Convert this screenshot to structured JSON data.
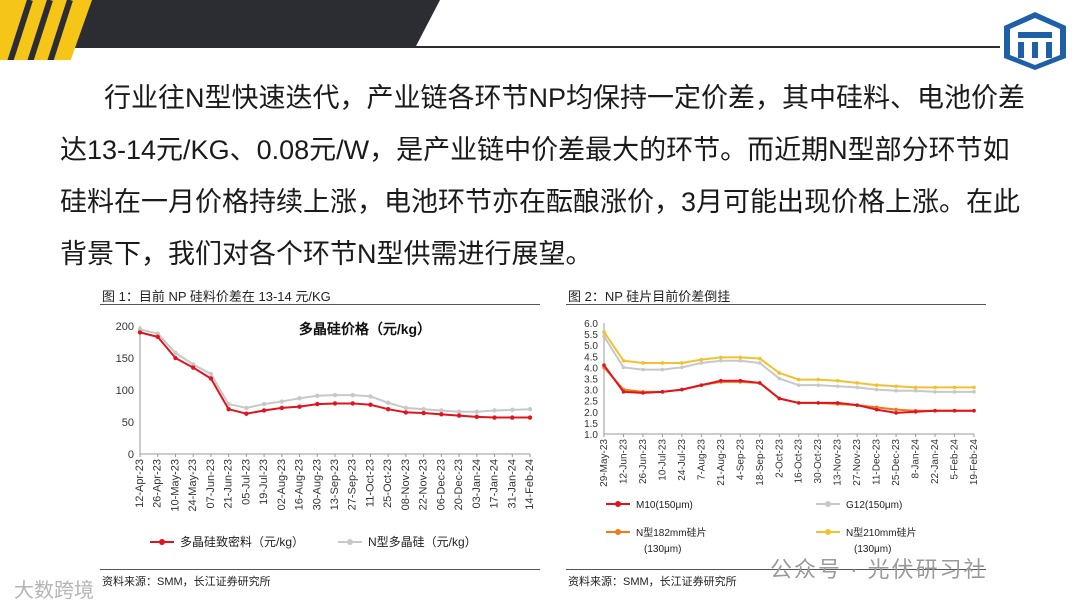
{
  "paragraph": {
    "line1": "行业往N型快速迭代，产业链各环节NP均保持一定价差，其中硅料、电池价差",
    "line2": "达13-14元/KG、0.08元/W，是产业链中价差最大的环节。而近期N型部分环节如",
    "line3": "硅料在一月价格持续上涨，电池环节亦在酝酿涨价，3月可能出现价格上涨。在此",
    "line4": "背景下，我们对各个环节N型供需进行展望。"
  },
  "figure1": {
    "caption": "图 1：目前 NP 硅料价差在 13-14 元/KG",
    "source": "资料来源：SMM，长江证券研究所"
  },
  "figure2": {
    "caption": "图 2：NP 硅片目前价差倒挂",
    "source": "资料来源：SMM，长江证券研究所"
  },
  "watermark": {
    "left": "大数跨境",
    "right": "公众号 · 光伏研习社"
  },
  "colors": {
    "banner_yellow": "#f5c518",
    "banner_dark": "#2b2d33",
    "red": "#e0141e",
    "gray": "#c8c8c8",
    "orange": "#f07a1a",
    "gold": "#f2c12e"
  },
  "chart_data": [
    {
      "type": "line",
      "title": "多晶硅价格（元/kg）",
      "xlabel": "",
      "ylabel": "",
      "ylim": [
        0,
        200
      ],
      "yticks": [
        "0",
        "50",
        "100",
        "150",
        "200"
      ],
      "categories": [
        "12-Apr-23",
        "26-Apr-23",
        "10-May-23",
        "24-May-23",
        "07-Jun-23",
        "21-Jun-23",
        "05-Jul-23",
        "19-Jul-23",
        "02-Aug-23",
        "16-Aug-23",
        "30-Aug-23",
        "13-Sep-23",
        "27-Sep-23",
        "11-Oct-23",
        "25-Oct-23",
        "08-Nov-23",
        "22-Nov-23",
        "06-Dec-23",
        "20-Dec-23",
        "03-Jan-24",
        "17-Jan-24",
        "31-Jan-24",
        "14-Feb-24"
      ],
      "series": [
        {
          "name": "多晶硅致密料（元/kg）",
          "values": [
            190,
            183,
            150,
            135,
            118,
            70,
            63,
            68,
            72,
            74,
            78,
            79,
            79,
            77,
            70,
            65,
            64,
            62,
            60,
            58,
            57,
            57,
            57
          ]
        },
        {
          "name": "N型多晶硅（元/kg）",
          "values": [
            195,
            188,
            158,
            140,
            125,
            78,
            72,
            78,
            82,
            87,
            91,
            92,
            92,
            90,
            80,
            72,
            70,
            68,
            66,
            66,
            68,
            69,
            70
          ]
        }
      ]
    },
    {
      "type": "line",
      "title": "",
      "xlabel": "",
      "ylabel": "",
      "ylim": [
        1.0,
        6.0
      ],
      "yticks": [
        "1.0",
        "1.5",
        "2.0",
        "2.5",
        "3.0",
        "3.5",
        "4.0",
        "4.5",
        "5.0",
        "5.5",
        "6.0"
      ],
      "categories": [
        "29-May-23",
        "12-Jun-23",
        "26-Jun-23",
        "10-Jul-23",
        "24-Jul-23",
        "7-Aug-23",
        "21-Aug-23",
        "4-Sep-23",
        "18-Sep-23",
        "2-Oct-23",
        "16-Oct-23",
        "30-Oct-23",
        "13-Nov-23",
        "27-Nov-23",
        "11-Dec-23",
        "25-Dec-23",
        "8-Jan-24",
        "22-Jan-24",
        "5-Feb-24",
        "19-Feb-24"
      ],
      "series": [
        {
          "name": "M10(150μm)",
          "values": [
            4.1,
            2.9,
            2.85,
            2.9,
            3.0,
            3.2,
            3.4,
            3.4,
            3.3,
            2.6,
            2.4,
            2.4,
            2.4,
            2.3,
            2.1,
            1.95,
            2.0,
            2.05,
            2.05,
            2.05
          ]
        },
        {
          "name": "G12(150μm)",
          "values": [
            5.4,
            4.0,
            3.9,
            3.9,
            4.0,
            4.2,
            4.3,
            4.3,
            4.2,
            3.5,
            3.2,
            3.2,
            3.15,
            3.1,
            3.0,
            2.95,
            2.95,
            2.9,
            2.9,
            2.9
          ]
        },
        {
          "name": "N型182mm硅片",
          "name2": "(130μm)",
          "values": [
            4.0,
            3.0,
            2.9,
            2.9,
            3.0,
            3.2,
            3.35,
            3.35,
            3.3,
            2.6,
            2.4,
            2.4,
            2.35,
            2.3,
            2.2,
            2.1,
            2.05,
            2.05,
            2.05,
            2.05
          ]
        },
        {
          "name": "N型210mm硅片",
          "name2": "(130μm)",
          "values": [
            5.6,
            4.3,
            4.2,
            4.2,
            4.2,
            4.35,
            4.45,
            4.45,
            4.4,
            3.75,
            3.45,
            3.45,
            3.4,
            3.3,
            3.2,
            3.15,
            3.1,
            3.1,
            3.1,
            3.1
          ]
        }
      ]
    }
  ]
}
